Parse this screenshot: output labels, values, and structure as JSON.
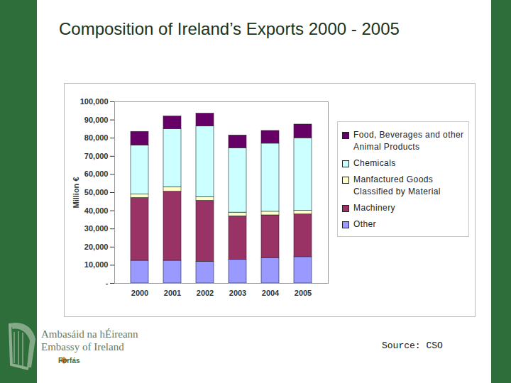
{
  "chart_data": {
    "type": "bar",
    "title": "Composition of Ireland’s Exports 2000 - 2005",
    "ylabel": "Million €",
    "stacked": true,
    "grid": false,
    "legend": "right",
    "categories": [
      "2000",
      "2001",
      "2002",
      "2003",
      "2004",
      "2005"
    ],
    "series": [
      {
        "name": "Food, Beverages and other Animal Products",
        "color": "#660066",
        "values": [
          7500,
          7000,
          7000,
          7000,
          7000,
          7500
        ]
      },
      {
        "name": "Chemicals",
        "color": "#ccffff",
        "values": [
          27000,
          32000,
          39000,
          35500,
          37500,
          40000
        ]
      },
      {
        "name": "Manfactured Goods Classified by Material",
        "color": "#ffffcc",
        "values": [
          2000,
          2500,
          2000,
          2000,
          2000,
          2000
        ]
      },
      {
        "name": "Machinery",
        "color": "#993366",
        "values": [
          34500,
          38000,
          33500,
          24000,
          23500,
          23500
        ]
      },
      {
        "name": "Other",
        "color": "#9999ff",
        "values": [
          12500,
          12500,
          12000,
          13000,
          14000,
          14500
        ]
      }
    ],
    "ylim": [
      0,
      100000
    ],
    "yticks": [
      {
        "value": 0,
        "label": "-"
      },
      {
        "value": 10000,
        "label": "10,000"
      },
      {
        "value": 20000,
        "label": "20,000"
      },
      {
        "value": 30000,
        "label": "30,000"
      },
      {
        "value": 40000,
        "label": "40,000"
      },
      {
        "value": 50000,
        "label": "50,000"
      },
      {
        "value": 60000,
        "label": "60,000"
      },
      {
        "value": 70000,
        "label": "70,000"
      },
      {
        "value": 80000,
        "label": "80,000"
      },
      {
        "value": 90000,
        "label": "90,000"
      },
      {
        "value": 100000,
        "label": "100,000"
      }
    ]
  },
  "slide": {
    "logo_lines": [
      "Ambasáid na hÉireann",
      "Embassy of Ireland"
    ],
    "logo_sub": "Forfás",
    "source": "Source: CSO"
  }
}
